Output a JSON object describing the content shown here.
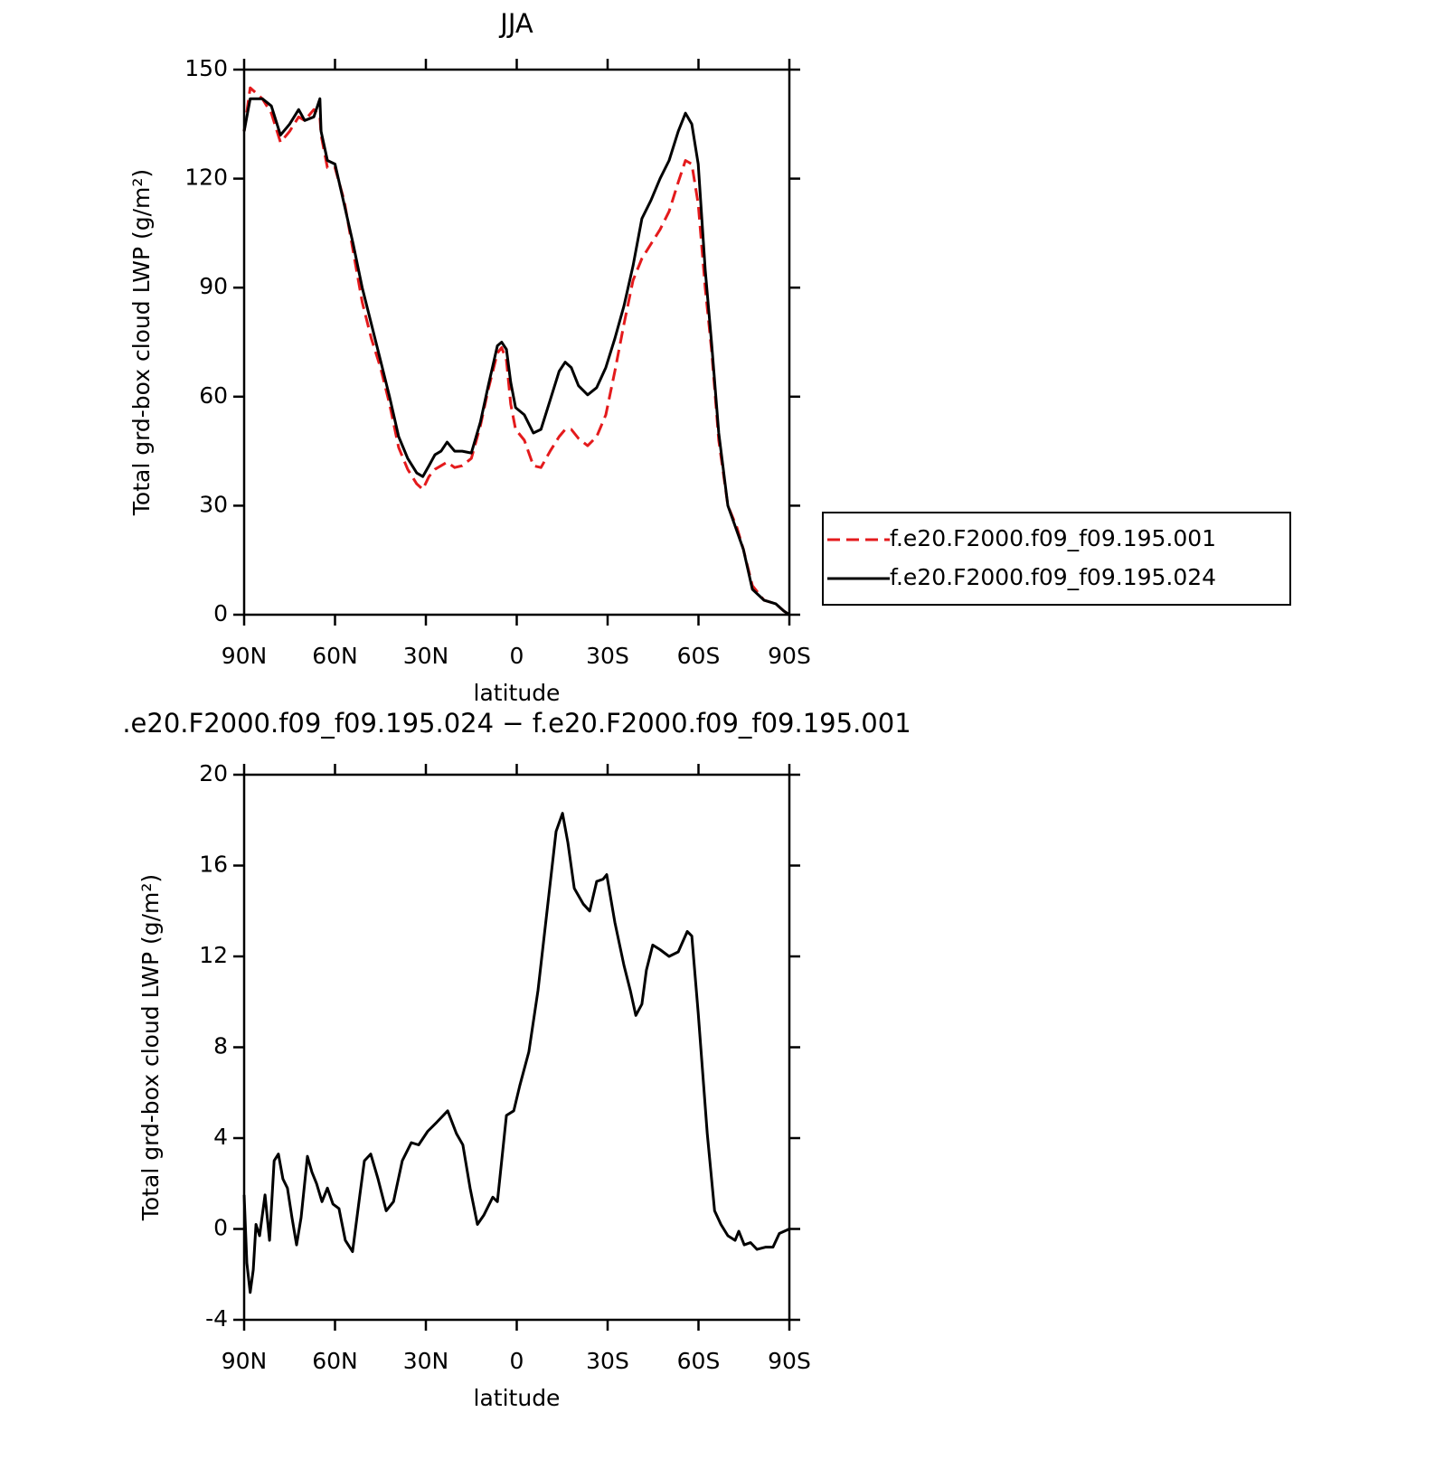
{
  "chart_data": [
    {
      "type": "line",
      "title": "JJA",
      "x_label": "latitude",
      "y_label": "Total grd-box cloud LWP (g/m²)",
      "x": [
        90,
        88,
        84,
        81,
        78,
        75,
        72,
        70,
        67,
        65,
        64.6,
        62.5,
        60,
        57,
        54,
        51,
        48,
        45,
        42,
        39,
        36,
        33,
        31,
        29,
        27,
        25,
        23,
        20.5,
        18,
        15,
        12,
        9.4,
        6.4,
        5,
        3.4,
        2,
        0.4,
        -2.5,
        -5.5,
        -8,
        -11,
        -14,
        -16,
        -18,
        -20.4,
        -23.4,
        -26.4,
        -29.4,
        -32.4,
        -35.4,
        -38.4,
        -41.3,
        -44.3,
        -47.3,
        -50.3,
        -53.3,
        -55.7,
        -57.8,
        -59.9,
        -62.2,
        -64.3,
        -66.7,
        -69.7,
        -72.7,
        -74.8,
        -77.8,
        -81.6,
        -85.5,
        -88.2,
        -90
      ],
      "series": [
        {
          "name": "f.e20.F2000.f09_f09.195.001",
          "color": "#e41a1c",
          "line_style": "dashed",
          "values": [
            133,
            145,
            142,
            138,
            130,
            133,
            137,
            136,
            139,
            137,
            132,
            123,
            123,
            114,
            100,
            86,
            76,
            68,
            58,
            46,
            40,
            36,
            34.5,
            38,
            40,
            41,
            42,
            40.5,
            41,
            43,
            52,
            62,
            72,
            73.5,
            70,
            58,
            51,
            48,
            41,
            40.5,
            45,
            49,
            51,
            51,
            48.5,
            46.5,
            49,
            55,
            67,
            80,
            92,
            98,
            102,
            106,
            111,
            119,
            125,
            124,
            113,
            90,
            73,
            48,
            30,
            24,
            18,
            8,
            4,
            3,
            1,
            0
          ]
        },
        {
          "name": "f.e20.F2000.f09_f09.195.024",
          "color": "#000000",
          "line_style": "solid",
          "values": [
            133,
            142,
            142,
            140,
            132,
            135,
            139,
            136,
            137,
            142,
            133,
            125,
            124,
            113,
            102,
            90,
            80,
            70,
            60,
            49,
            43,
            39,
            38,
            41,
            44,
            45,
            47.5,
            45,
            45,
            44.5,
            53,
            63,
            74,
            75,
            73,
            64,
            57,
            55,
            50,
            51,
            59,
            67,
            69.5,
            68,
            63,
            60.5,
            62.5,
            68,
            76,
            85,
            96,
            109,
            114,
            120,
            125,
            133,
            138,
            135,
            124,
            95,
            75,
            50,
            30,
            23,
            18,
            7,
            4,
            3,
            1,
            0
          ]
        }
      ],
      "xlim": [
        90,
        -90
      ],
      "ylim": [
        0,
        150
      ],
      "xticks": [
        {
          "value": 90,
          "label": "90N"
        },
        {
          "value": 60,
          "label": "60N"
        },
        {
          "value": 30,
          "label": "30N"
        },
        0,
        {
          "value": -30,
          "label": "30S"
        },
        {
          "value": -60,
          "label": "60S"
        },
        {
          "value": -90,
          "label": "90S"
        }
      ],
      "yticks": [
        0,
        30,
        60,
        90,
        120,
        150
      ],
      "legend_position": "right"
    },
    {
      "type": "line",
      "title": ".e20.F2000.f09_f09.195.024 − f.e20.F2000.f09_f09.195.001",
      "x_label": "latitude",
      "y_label": "Total grd-box cloud LWP (g/m²)",
      "x": [
        90,
        89.1,
        88,
        87,
        86.1,
        84.9,
        83.1,
        81.6,
        80.1,
        78.7,
        77.2,
        75.7,
        74.2,
        72.7,
        71.2,
        69.1,
        67.6,
        66.1,
        64.3,
        62.5,
        60.7,
        58.7,
        56.6,
        54.2,
        51.8,
        50.3,
        48.2,
        45.8,
        43.1,
        40.7,
        37.8,
        34.8,
        32.4,
        29.4,
        26.4,
        22.8,
        19.9,
        17.8,
        15.4,
        13,
        10.9,
        7.9,
        6.4,
        3.4,
        1,
        -1,
        -4,
        -7,
        -10,
        -13,
        -15.1,
        -16.9,
        -19,
        -22,
        -24.1,
        -26.4,
        -28.5,
        -29.7,
        -32.4,
        -35.4,
        -37.5,
        -39.3,
        -41.3,
        -42.8,
        -44.9,
        -47.3,
        -50.3,
        -53.3,
        -56.3,
        -57.8,
        -59.9,
        -62.9,
        -65.3,
        -67.4,
        -69.7,
        -72.1,
        -73.3,
        -75.1,
        -77.2,
        -79.3,
        -82.2,
        -84.6,
        -86.7,
        -90
      ],
      "series": [
        {
          "color": "#000000",
          "line_style": "solid",
          "values": [
            1.5,
            -1.5,
            -2.8,
            -1.8,
            0.2,
            -0.3,
            1.5,
            -0.5,
            3,
            3.3,
            2.2,
            1.8,
            0.5,
            -0.7,
            0.5,
            3.2,
            2.5,
            2.0,
            1.2,
            1.8,
            1.1,
            0.9,
            -0.5,
            -1.0,
            1.5,
            3.0,
            3.3,
            2.2,
            0.8,
            1.2,
            3.0,
            3.8,
            3.7,
            4.3,
            4.7,
            5.2,
            4.2,
            3.7,
            1.8,
            0.2,
            0.6,
            1.4,
            1.2,
            5.0,
            5.2,
            6.3,
            7.8,
            10.5,
            14.0,
            17.5,
            18.3,
            17.0,
            15.0,
            14.3,
            14.0,
            15.3,
            15.4,
            15.6,
            13.5,
            11.6,
            10.5,
            9.4,
            9.9,
            11.4,
            12.5,
            12.3,
            12.0,
            12.2,
            13.1,
            12.9,
            9.5,
            4.2,
            0.8,
            0.2,
            -0.3,
            -0.5,
            -0.1,
            -0.7,
            -0.6,
            -0.9,
            -0.8,
            -0.8,
            -0.2,
            0
          ]
        }
      ],
      "xlim": [
        90,
        -90
      ],
      "ylim": [
        -4,
        20
      ],
      "xticks": [
        {
          "value": 90,
          "label": "90N"
        },
        {
          "value": 60,
          "label": "60N"
        },
        {
          "value": 30,
          "label": "30N"
        },
        0,
        {
          "value": -30,
          "label": "30S"
        },
        {
          "value": -60,
          "label": "60S"
        },
        {
          "value": -90,
          "label": "90S"
        }
      ],
      "yticks": [
        -4,
        0,
        4,
        8,
        12,
        16,
        20
      ]
    }
  ]
}
